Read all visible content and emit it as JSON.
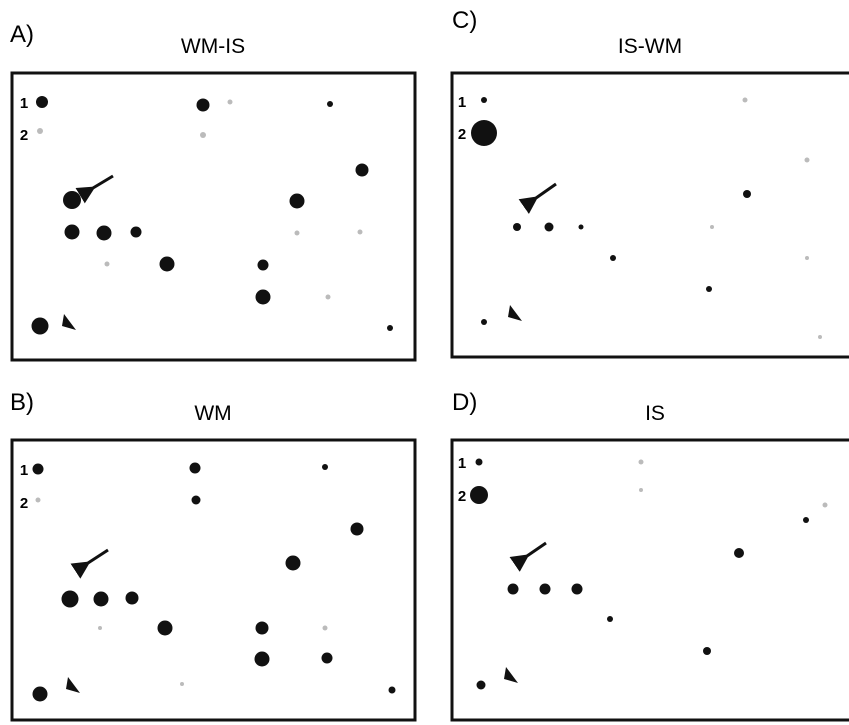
{
  "panels": [
    {
      "letter": "A)",
      "title": "WM-IS",
      "rows": [
        "1",
        "2"
      ]
    },
    {
      "letter": "C)",
      "title": "IS-WM",
      "rows": [
        "1",
        "2"
      ]
    },
    {
      "letter": "B)",
      "title": "WM",
      "rows": [
        "1",
        "2"
      ]
    },
    {
      "letter": "D)",
      "title": "IS",
      "rows": [
        "1",
        "2"
      ]
    }
  ]
}
